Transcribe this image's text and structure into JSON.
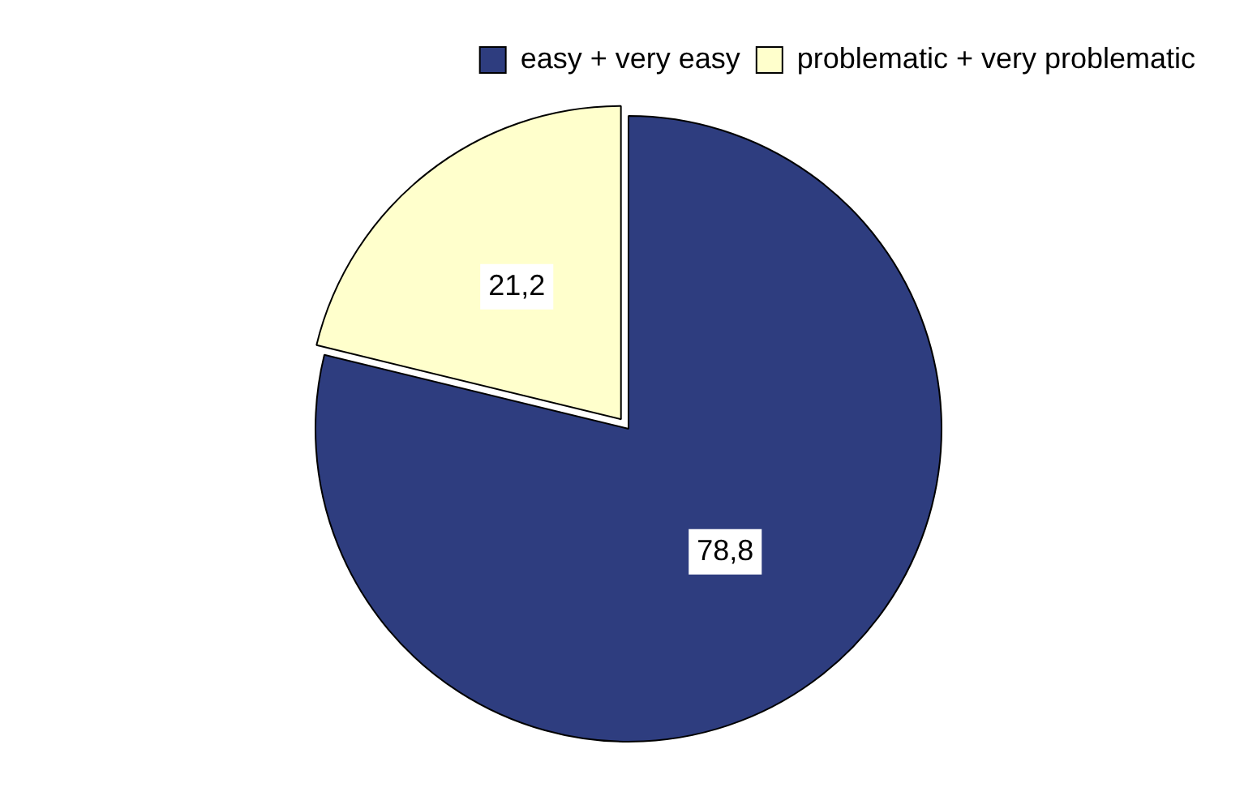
{
  "chart_data": {
    "type": "pie",
    "categories": [
      "easy + very easy",
      "problematic + very problematic"
    ],
    "values": [
      78.8,
      21.2
    ],
    "value_labels": [
      "78,8",
      "21,2"
    ],
    "colors": [
      "#2e3d7f",
      "#ffffcc"
    ],
    "legend": "top right"
  }
}
